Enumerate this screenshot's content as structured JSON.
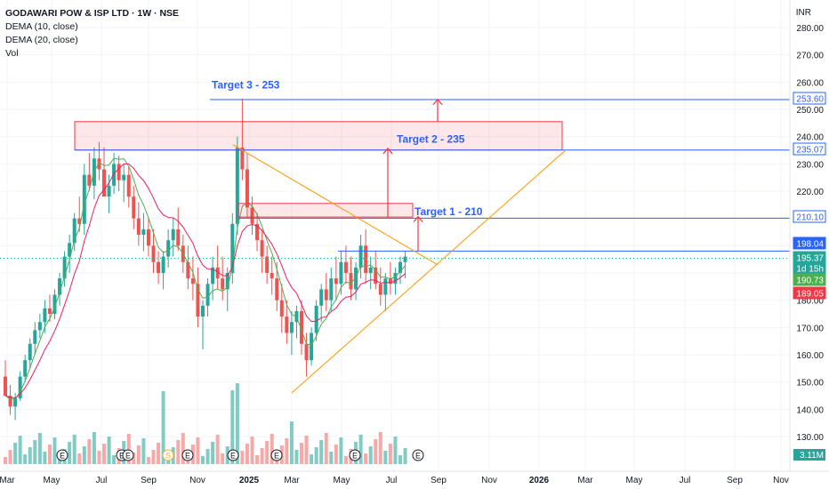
{
  "header": {
    "symbol_line": "GODAWARI POW & ISP LTD · 1W · NSE",
    "indicator_1": "DEMA (10, close)",
    "indicator_2": "DEMA (20, close)",
    "indicator_3": "Vol",
    "currency": "INR"
  },
  "chart_data": {
    "type": "candlestick",
    "y_axis": {
      "min": 120,
      "max": 280,
      "ticks": [
        130,
        140,
        150,
        160,
        170,
        180,
        190,
        200,
        210,
        220,
        230,
        240,
        250,
        260,
        270,
        280
      ]
    },
    "x_axis": {
      "labels": [
        "Mar",
        "May",
        "Jul",
        "Sep",
        "Nov",
        "2025",
        "Mar",
        "May",
        "Jul",
        "Sep",
        "Nov",
        "2026",
        "Mar",
        "May",
        "Jul",
        "Sep",
        "Nov"
      ],
      "bold_labels": [
        "2025",
        "2026"
      ]
    },
    "price_badges": [
      {
        "text": "253.60",
        "value": 253.6,
        "style": "blue-outline"
      },
      {
        "text": "235.07",
        "value": 235.07,
        "style": "blue-outline"
      },
      {
        "text": "210.10",
        "value": 210.1,
        "style": "blue-outline"
      },
      {
        "text": "198.04",
        "value": 198.04,
        "style": "blue-fill"
      },
      {
        "text": "195.37",
        "value": 195.37,
        "style": "teal-fill"
      },
      {
        "text": "1d 15h",
        "value": 191.9,
        "style": "teal-fill"
      },
      {
        "text": "190.73",
        "value": 190.73,
        "style": "green-fill"
      },
      {
        "text": "189.05",
        "value": 189.05,
        "style": "red-fill"
      }
    ],
    "volume_badge": "3.11M",
    "horizontal_lines": [
      253.6,
      235.07,
      210.1,
      198.04
    ],
    "zones": [
      {
        "from": 235.07,
        "to": 245.5
      },
      {
        "from": 210.5,
        "to": 215.5
      }
    ],
    "annotations": [
      {
        "text": "Target 3 - 253",
        "price": 259
      },
      {
        "text": "Target 2 - 235",
        "price": 239
      },
      {
        "text": "Target 1 - 210",
        "price": 212.5
      }
    ],
    "event_markers": [
      "E",
      "E",
      "E",
      "S",
      "E",
      "E",
      "E",
      "E",
      "E"
    ],
    "colors": {
      "up": "#26a69a",
      "down": "#ef5350",
      "vol_up": "#80cbc4",
      "vol_down": "#f7a9a7",
      "dema10": "#4caf50",
      "dema20": "#e91e63",
      "target_line": "#2962ff",
      "zone": "#f23645",
      "triangle": "#ff9800",
      "annotation": "#2962ff"
    }
  }
}
